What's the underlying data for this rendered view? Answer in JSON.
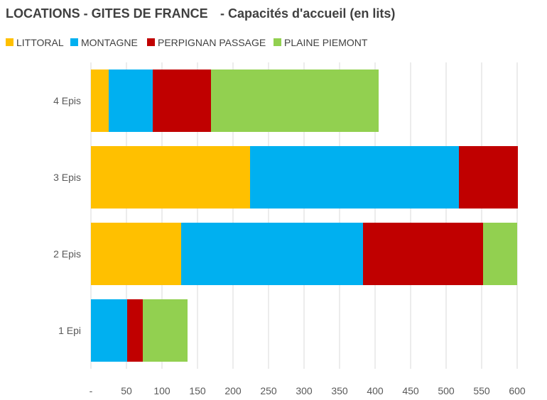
{
  "chart_data": {
    "type": "bar",
    "orientation": "horizontal",
    "stacked": true,
    "title": "LOCATIONS - GITES DE FRANCE",
    "subtitle": "- Capacités d'accueil (en lits)",
    "categories": [
      "4 Epis",
      "3 Epis",
      "2 Epis",
      "1 Epi"
    ],
    "series": [
      {
        "name": "LITTORAL",
        "color": "#FFC000",
        "values": [
          25,
          224,
          127,
          0
        ]
      },
      {
        "name": "MONTAGNE",
        "color": "#00B0F0",
        "values": [
          62,
          294,
          256,
          51
        ]
      },
      {
        "name": "PERPIGNAN PASSAGE",
        "color": "#C00000",
        "values": [
          82,
          83,
          169,
          22
        ]
      },
      {
        "name": "PLAINE PIEMONT",
        "color": "#92D050",
        "values": [
          236,
          0,
          48,
          63
        ]
      }
    ],
    "xlim": [
      0,
      600
    ],
    "xticks": [
      0,
      50,
      100,
      150,
      200,
      250,
      300,
      350,
      400,
      450,
      500,
      550,
      600
    ],
    "xtick_labels": [
      "-",
      "50",
      "100",
      "150",
      "200",
      "250",
      "300",
      "350",
      "400",
      "450",
      "500",
      "550",
      "600"
    ],
    "xlabel": "",
    "ylabel": "",
    "grid": true,
    "legend_position": "top-left"
  }
}
